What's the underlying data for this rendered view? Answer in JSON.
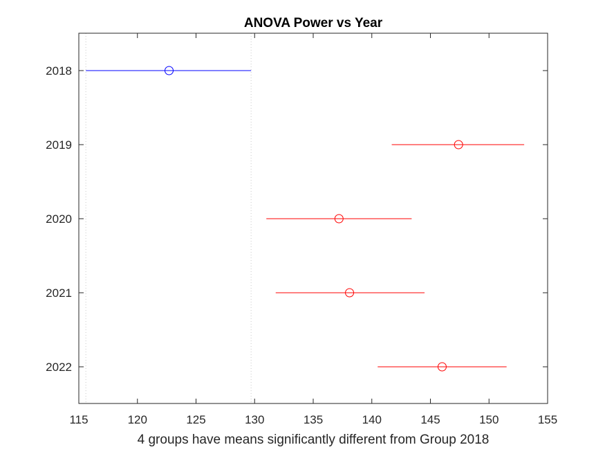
{
  "chart_data": {
    "type": "scatter",
    "title": "ANOVA Power vs Year",
    "xlabel": "4 groups have means significantly different from Group 2018",
    "ylabel": "",
    "xlim": [
      115,
      155
    ],
    "xticks": [
      115,
      120,
      125,
      130,
      135,
      140,
      145,
      150,
      155
    ],
    "xtick_labels": [
      "115",
      "120",
      "125",
      "130",
      "135",
      "140",
      "145",
      "150",
      "155"
    ],
    "categories": [
      "2018",
      "2019",
      "2020",
      "2021",
      "2022"
    ],
    "means": [
      122.7,
      147.4,
      137.2,
      138.1,
      146.0
    ],
    "lower": [
      115.6,
      141.7,
      131.0,
      131.8,
      140.5
    ],
    "upper": [
      129.7,
      153.0,
      143.4,
      144.5,
      151.5
    ],
    "reference_group": "2018",
    "reference_interval": [
      115.6,
      129.7
    ],
    "colors": {
      "reference": "#0000ff",
      "significant": "#ff0000",
      "reference_lines": "#c8c8c8",
      "axes": "#262626"
    },
    "grid": false,
    "legend": "none"
  }
}
